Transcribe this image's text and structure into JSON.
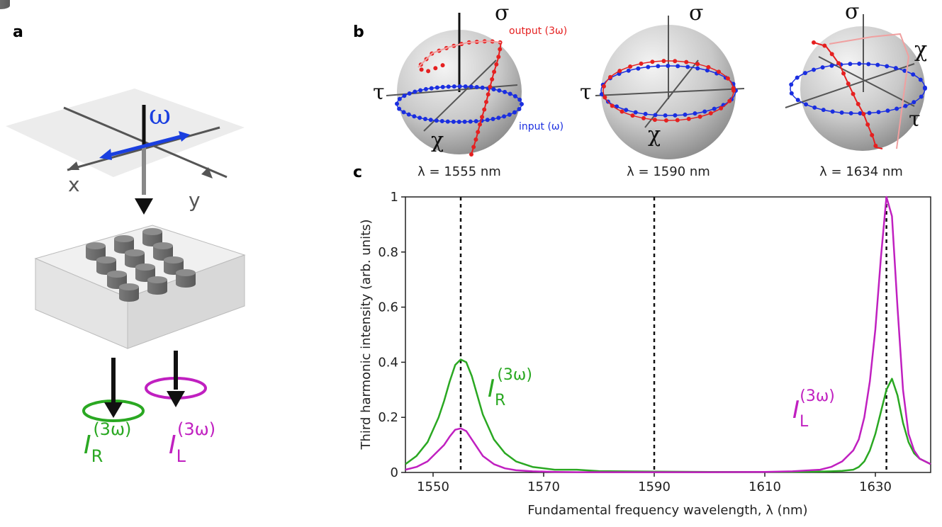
{
  "panel_a": {
    "letter": "a",
    "omega": "ω",
    "x_axis": "x",
    "y_axis": "y",
    "out_right": {
      "text": "I",
      "subscript": "R",
      "superscript": "(3ω)"
    },
    "out_left": {
      "text": "I",
      "subscript": "L",
      "superscript": "(3ω)"
    }
  },
  "panel_b": {
    "letter": "b",
    "output_label": "output (3ω)",
    "input_label": "input (ω)",
    "spheres": [
      {
        "sigma": "σ",
        "tau": "τ",
        "chi": "χ",
        "caption": "λ = 1555 nm"
      },
      {
        "sigma": "σ",
        "tau": "τ",
        "chi": "χ",
        "caption": "λ = 1590 nm"
      },
      {
        "sigma": "σ",
        "tau": "τ",
        "chi": "χ",
        "caption": "λ = 1634 nm"
      }
    ]
  },
  "chart_data": {
    "type": "line",
    "letter": "c",
    "x_label": "Fundamental frequency wavelength, λ (nm)",
    "y_label": "Third harmonic intensity (arb. units)",
    "xlim": [
      1545,
      1640
    ],
    "xticks": [
      1550,
      1570,
      1590,
      1610,
      1630
    ],
    "ylim": [
      0,
      1
    ],
    "yticks": [
      0,
      0.2,
      0.4,
      0.6,
      0.8,
      1
    ],
    "vlines": [
      1555,
      1590,
      1632
    ],
    "x": [
      1545,
      1547,
      1549,
      1551,
      1552,
      1553,
      1554,
      1555,
      1556,
      1557,
      1558,
      1559,
      1561,
      1563,
      1565,
      1568,
      1572,
      1576,
      1580,
      1590,
      1600,
      1610,
      1615,
      1620,
      1622,
      1624,
      1626,
      1627,
      1628,
      1629,
      1630,
      1631,
      1632,
      1633,
      1634,
      1635,
      1636,
      1637,
      1638,
      1640
    ],
    "series": [
      {
        "name": "R",
        "color": "#2aa822",
        "values": [
          0.03,
          0.06,
          0.11,
          0.2,
          0.26,
          0.33,
          0.39,
          0.41,
          0.4,
          0.35,
          0.28,
          0.21,
          0.12,
          0.07,
          0.04,
          0.02,
          0.01,
          0.01,
          0.005,
          0.003,
          0.002,
          0.002,
          0.002,
          0.003,
          0.004,
          0.006,
          0.01,
          0.02,
          0.04,
          0.08,
          0.14,
          0.22,
          0.3,
          0.34,
          0.28,
          0.18,
          0.11,
          0.07,
          0.05,
          0.03
        ]
      },
      {
        "name": "L",
        "color": "#c020c0",
        "values": [
          0.01,
          0.02,
          0.04,
          0.08,
          0.1,
          0.13,
          0.155,
          0.16,
          0.15,
          0.12,
          0.09,
          0.06,
          0.03,
          0.015,
          0.008,
          0.004,
          0.002,
          0.001,
          0.001,
          0.001,
          0.001,
          0.002,
          0.004,
          0.01,
          0.02,
          0.04,
          0.08,
          0.12,
          0.2,
          0.33,
          0.52,
          0.78,
          1.0,
          0.93,
          0.6,
          0.3,
          0.14,
          0.08,
          0.05,
          0.03
        ]
      }
    ],
    "annotations": [
      {
        "text": "I",
        "subscript": "R",
        "superscript": "(3ω)",
        "color": "#2aa822"
      },
      {
        "text": "I",
        "subscript": "L",
        "superscript": "(3ω)",
        "color": "#c020c0"
      }
    ]
  }
}
